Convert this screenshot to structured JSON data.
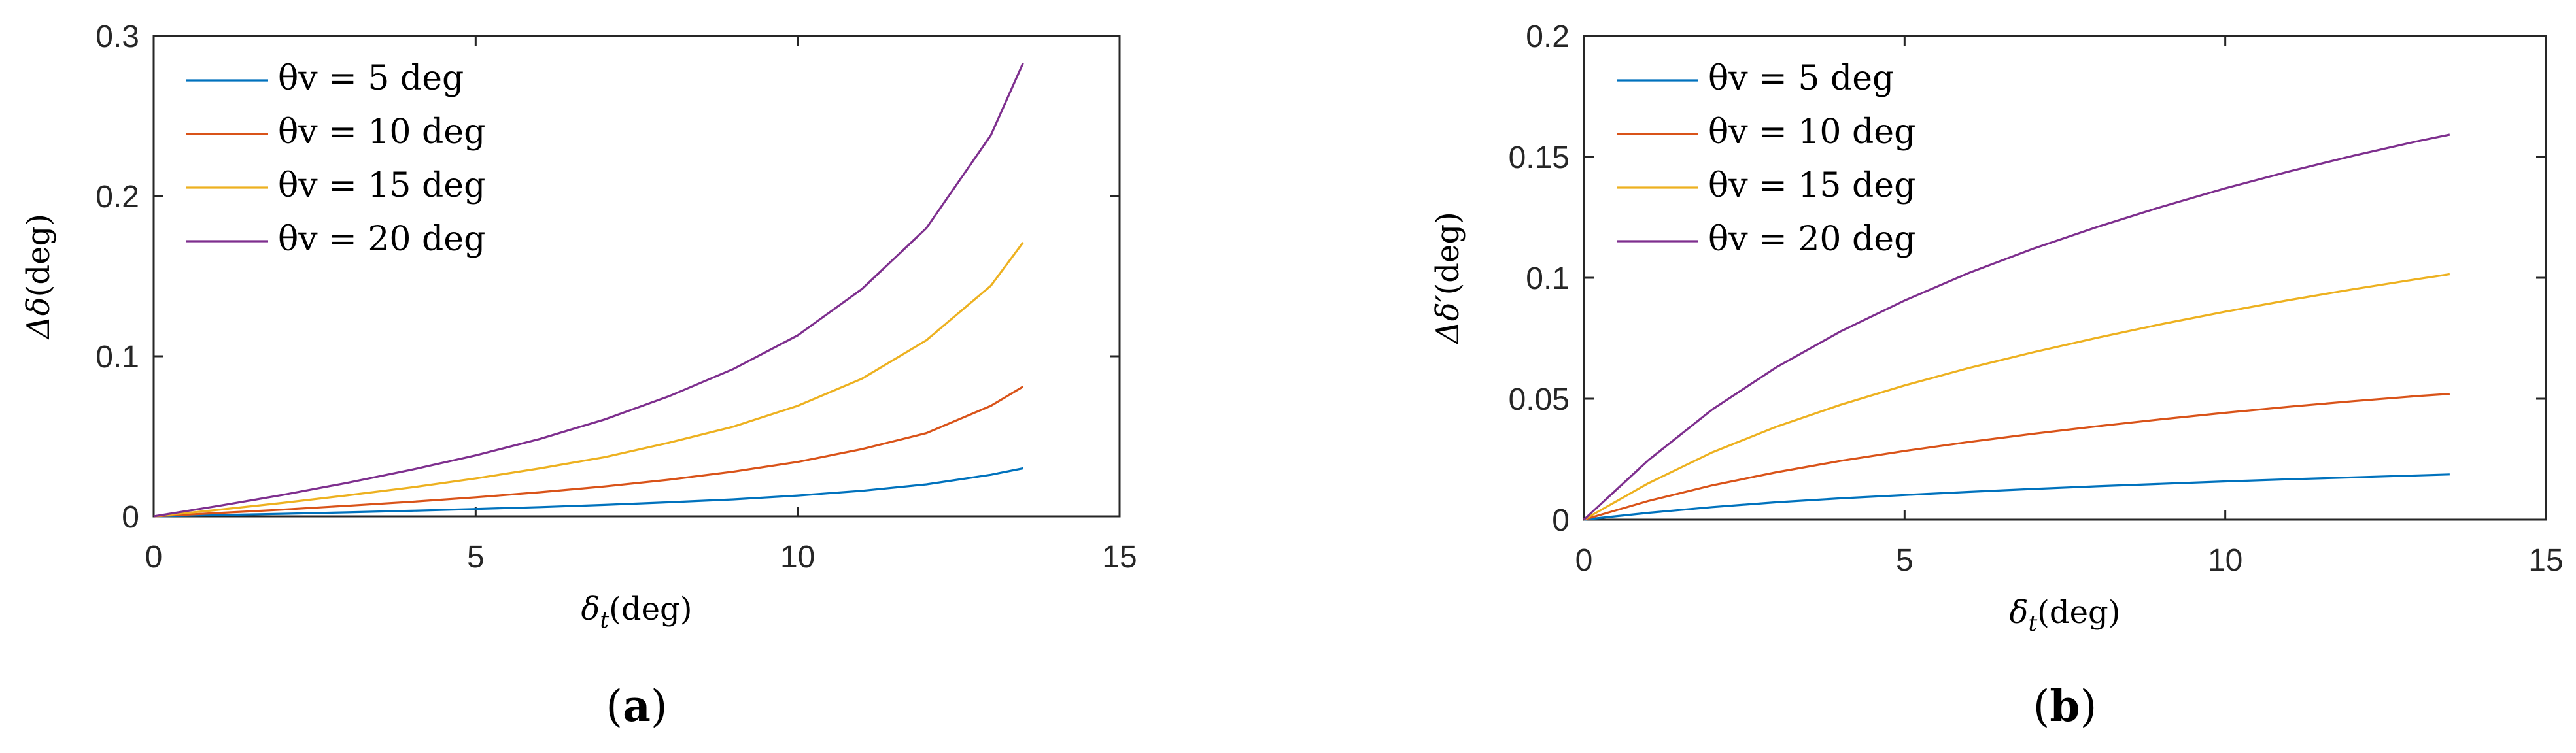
{
  "chart_data": [
    {
      "type": "line",
      "panel_label": "(a)",
      "panel_letter": "a",
      "xlabel_symbol": "δ",
      "xlabel_sub": "t",
      "xlabel_unit": "(deg)",
      "ylabel_symbol": "Δδ",
      "ylabel_unit": "(deg)",
      "xlim": [
        0,
        15
      ],
      "ylim": [
        0,
        0.3
      ],
      "xticks": [
        "0",
        "5",
        "10",
        "15"
      ],
      "yticks": [
        "0",
        "0.1",
        "0.2",
        "0.3"
      ],
      "legend_placement": "top-left",
      "grid": false,
      "x": [
        0,
        1,
        2,
        3,
        4,
        5,
        6,
        7,
        8,
        9,
        10,
        11,
        12,
        13,
        13.5
      ],
      "series": [
        {
          "name": "θv = 5 deg",
          "color": "#0072BD",
          "values": [
            0,
            0.0008,
            0.0016,
            0.0025,
            0.0035,
            0.0046,
            0.0058,
            0.0072,
            0.0088,
            0.0106,
            0.013,
            0.016,
            0.02,
            0.026,
            0.03
          ]
        },
        {
          "name": "θv = 10 deg",
          "color": "#D95319",
          "values": [
            0,
            0.0021,
            0.0042,
            0.0066,
            0.0091,
            0.0119,
            0.0151,
            0.0187,
            0.0229,
            0.0279,
            0.034,
            0.042,
            0.052,
            0.069,
            0.081
          ]
        },
        {
          "name": "θv = 15 deg",
          "color": "#EDB120",
          "values": [
            0,
            0.0041,
            0.0084,
            0.0131,
            0.0181,
            0.0237,
            0.03,
            0.037,
            0.046,
            0.056,
            0.069,
            0.086,
            0.11,
            0.144,
            0.171
          ]
        },
        {
          "name": "θv = 20 deg",
          "color": "#7E2F8E",
          "values": [
            0,
            0.0065,
            0.0134,
            0.0209,
            0.0291,
            0.0381,
            0.0484,
            0.0605,
            0.075,
            0.092,
            0.113,
            0.142,
            0.18,
            0.238,
            0.283
          ]
        }
      ]
    },
    {
      "type": "line",
      "panel_label": "(b)",
      "panel_letter": "b",
      "xlabel_symbol": "δ",
      "xlabel_sub": "t",
      "xlabel_unit": "(deg)",
      "ylabel_symbol": "Δδ′",
      "ylabel_unit": "(deg)",
      "xlim": [
        0,
        15
      ],
      "ylim": [
        0,
        0.2
      ],
      "xticks": [
        "0",
        "5",
        "10",
        "15"
      ],
      "yticks": [
        "0",
        "0.05",
        "0.1",
        "0.15",
        "0.2"
      ],
      "legend_placement": "top-left",
      "grid": false,
      "x": [
        0,
        1,
        2,
        3,
        4,
        5,
        6,
        7,
        8,
        9,
        10,
        11,
        12,
        13,
        13.5
      ],
      "series": [
        {
          "name": "θv = 5 deg",
          "color": "#0072BD",
          "values": [
            0,
            0.0028,
            0.0052,
            0.0072,
            0.0088,
            0.0102,
            0.0115,
            0.0127,
            0.0138,
            0.0148,
            0.0158,
            0.0167,
            0.0175,
            0.0183,
            0.0187
          ]
        },
        {
          "name": "θv = 10 deg",
          "color": "#D95319",
          "values": [
            0,
            0.0077,
            0.0142,
            0.0196,
            0.0243,
            0.0284,
            0.0321,
            0.0355,
            0.0386,
            0.0415,
            0.0442,
            0.0467,
            0.049,
            0.0511,
            0.052
          ]
        },
        {
          "name": "θv = 15 deg",
          "color": "#EDB120",
          "values": [
            0,
            0.015,
            0.0278,
            0.0384,
            0.0475,
            0.0555,
            0.0627,
            0.0692,
            0.0752,
            0.0808,
            0.086,
            0.0908,
            0.0953,
            0.0995,
            0.1015
          ]
        },
        {
          "name": "θv = 20 deg",
          "color": "#7E2F8E",
          "values": [
            0,
            0.0245,
            0.0455,
            0.063,
            0.0778,
            0.0906,
            0.102,
            0.112,
            0.121,
            0.1293,
            0.137,
            0.144,
            0.1505,
            0.1565,
            0.1592
          ]
        }
      ]
    }
  ]
}
